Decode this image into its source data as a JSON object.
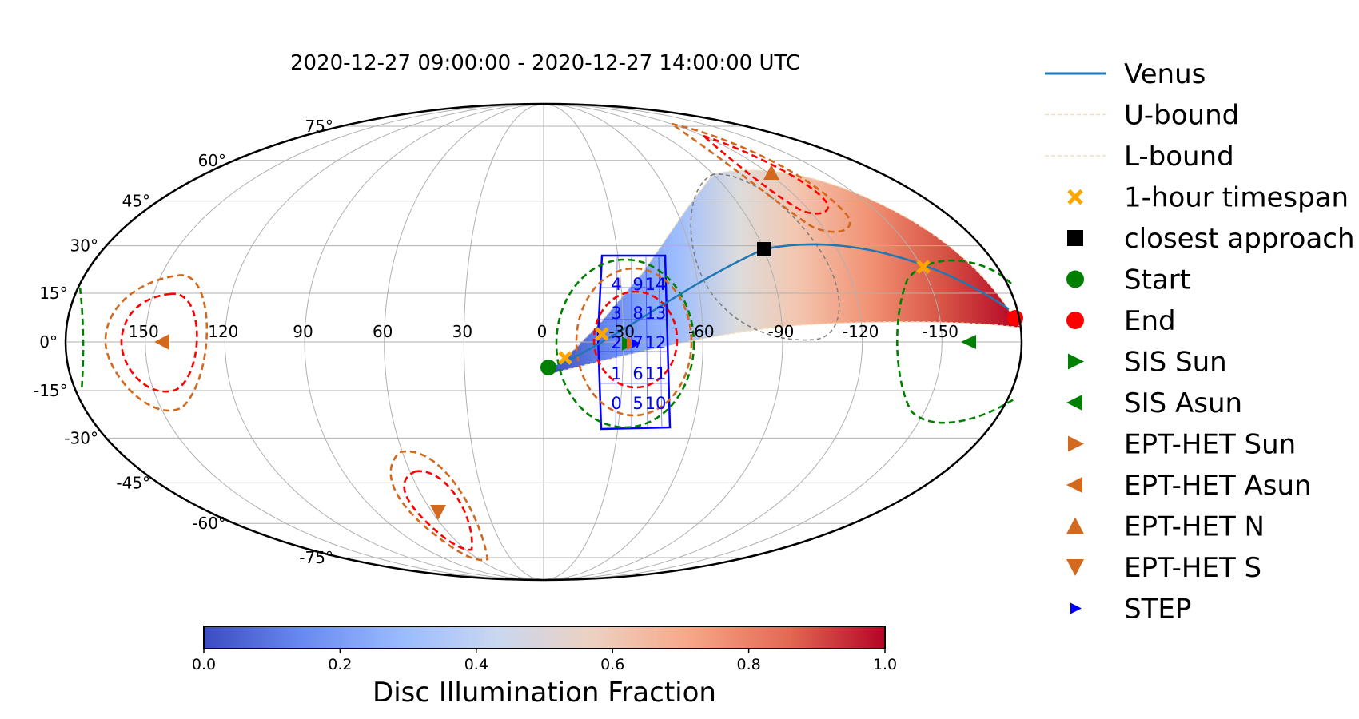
{
  "chart_data": {
    "type": "scatter",
    "projection": "mollweide",
    "title": "2020-12-27 09:00:00 - 2020-12-27 14:00:00 UTC",
    "longitude_ticks": [
      "150",
      "120",
      "90",
      "60",
      "30",
      "0",
      "-30",
      "-60",
      "-90",
      "-120",
      "-150"
    ],
    "latitude_ticks": [
      "75°",
      "60°",
      "45°",
      "30°",
      "15°",
      "0°",
      "-15°",
      "-30°",
      "-45°",
      "-60°",
      "-75°"
    ],
    "grid": true,
    "legend_position": "right",
    "legend": [
      {
        "label": "Venus",
        "marker": "line",
        "color": "#1f77b4"
      },
      {
        "label": "U-bound",
        "marker": "dashed-line",
        "color": "#f5deb3"
      },
      {
        "label": "L-bound",
        "marker": "dashed-line",
        "color": "#f5deb3"
      },
      {
        "label": "1-hour timespan",
        "marker": "x",
        "color": "#ffa500"
      },
      {
        "label": "closest approach",
        "marker": "square",
        "color": "#000000"
      },
      {
        "label": "Start",
        "marker": "circle",
        "color": "#008000"
      },
      {
        "label": "End",
        "marker": "circle",
        "color": "#ff0000"
      },
      {
        "label": "SIS Sun",
        "marker": "triangle-right",
        "color": "#008000"
      },
      {
        "label": "SIS Asun",
        "marker": "triangle-left",
        "color": "#008000"
      },
      {
        "label": "EPT-HET Sun",
        "marker": "triangle-right",
        "color": "#d2691e"
      },
      {
        "label": "EPT-HET Asun",
        "marker": "triangle-left",
        "color": "#d2691e"
      },
      {
        "label": "EPT-HET N",
        "marker": "triangle-up",
        "color": "#d2691e"
      },
      {
        "label": "EPT-HET S",
        "marker": "triangle-down",
        "color": "#d2691e"
      },
      {
        "label": "STEP",
        "marker": "small-triangle-right",
        "color": "#0000ff"
      }
    ],
    "venus_track": [
      [
        -5,
        -4
      ],
      [
        -15,
        2
      ],
      [
        -35,
        10
      ],
      [
        -60,
        19
      ],
      [
        -85,
        23
      ],
      [
        -100,
        24
      ],
      [
        -120,
        23
      ],
      [
        -145,
        19
      ],
      [
        -165,
        13
      ],
      [
        -178,
        9
      ]
    ],
    "points": {
      "timespan_markers": [
        [
          -7,
          -4
        ],
        [
          -22,
          3
        ],
        [
          -150,
          19
        ]
      ],
      "closest_approach": [
        -90,
        23
      ],
      "start": [
        -2,
        -6
      ],
      "end": [
        -179,
        6
      ],
      "sis_sun": [
        -27,
        0
      ],
      "sis_asun": [
        -163,
        0
      ],
      "ept_het_sun": [
        -27,
        0
      ],
      "ept_het_asun": [
        163,
        0
      ],
      "ept_het_n": [
        -70,
        45
      ],
      "ept_het_s": [
        60,
        -47
      ],
      "step": [
        -31,
        0
      ]
    },
    "step_pixel_labels": [
      [
        "4",
        "9",
        "14"
      ],
      [
        "3",
        "8",
        "13"
      ],
      [
        "2",
        "7",
        "12"
      ],
      [
        "1",
        "6",
        "11"
      ],
      [
        "0",
        "5",
        "10"
      ]
    ],
    "colorbar": {
      "label": "Disc Illumination Fraction",
      "range": [
        0.0,
        1.0
      ],
      "ticks": [
        "0.0",
        "0.2",
        "0.4",
        "0.6",
        "0.8",
        "1.0"
      ],
      "colormap": [
        "#3b4cc0",
        "#6788ee",
        "#9abbff",
        "#c9d7f0",
        "#edd1c2",
        "#f7a889",
        "#e26952",
        "#b40426"
      ]
    },
    "colors": {
      "venus": "#1f77b4",
      "bound": "#f5deb3",
      "timespan": "#ffa500",
      "sis": "#008000",
      "ept": "#d2691e",
      "inner_contour": "#ff0000",
      "fov_grey": "#808080",
      "step": "#0000ff"
    }
  }
}
